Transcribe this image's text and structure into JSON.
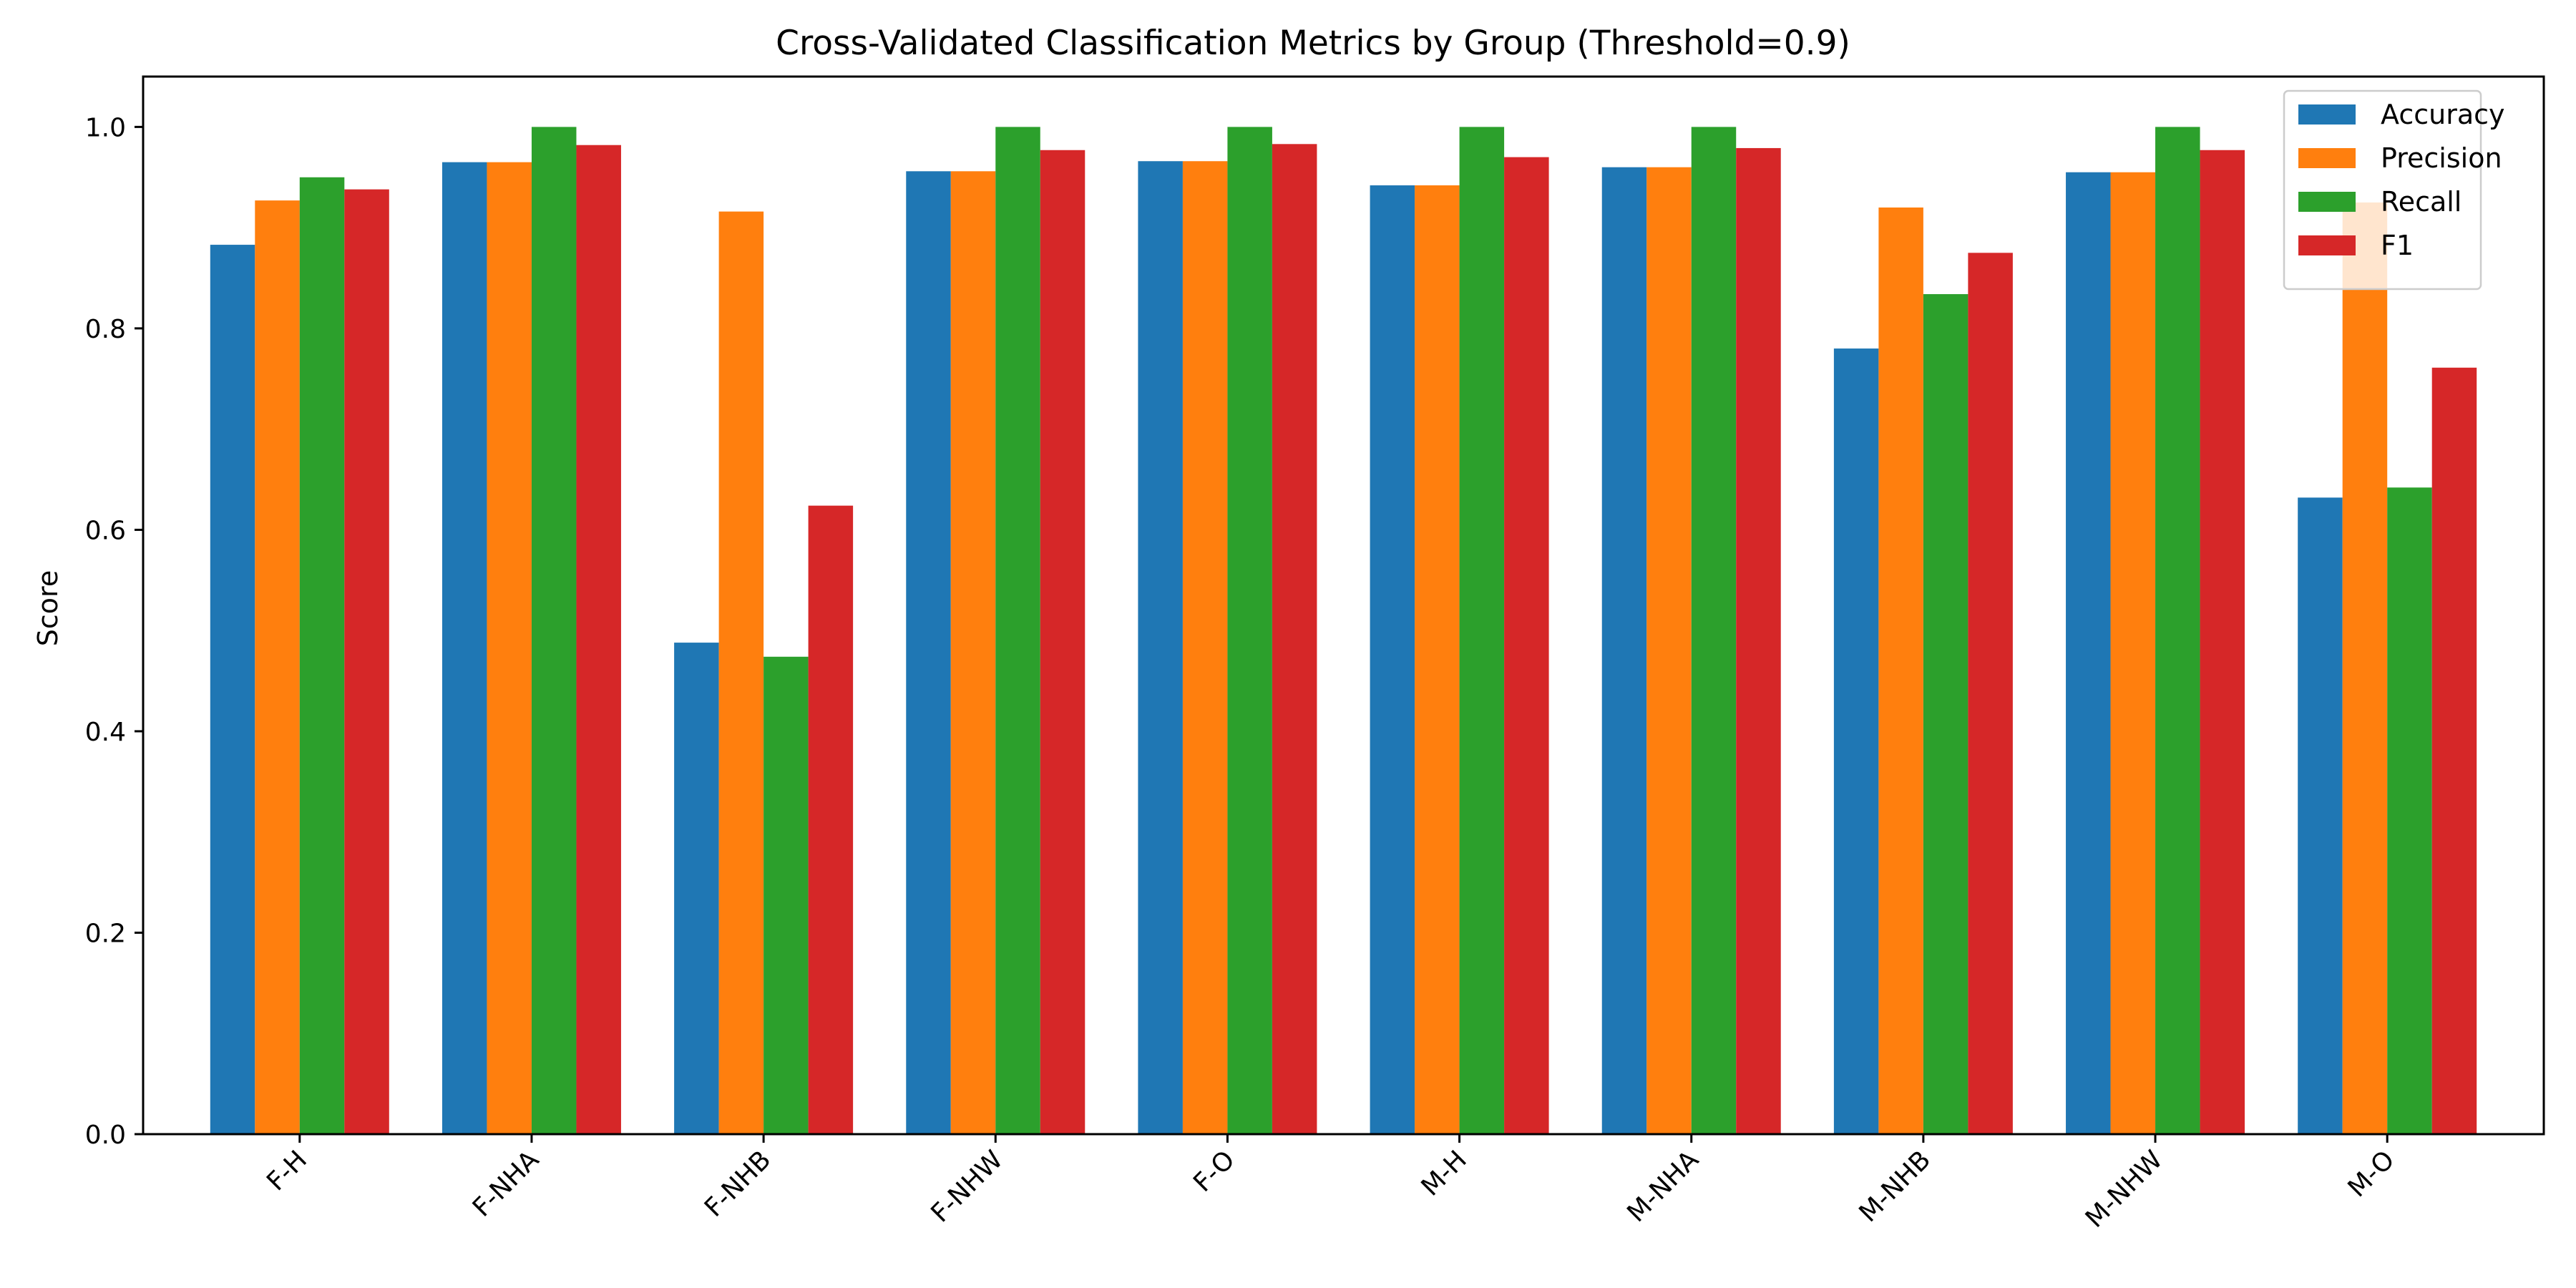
{
  "chart_data": {
    "type": "bar",
    "title": "Cross-Validated Classification Metrics by Group (Threshold=0.9)",
    "xlabel": "",
    "ylabel": "Score",
    "ylim": [
      0.0,
      1.05
    ],
    "yticks": [
      "0.0",
      "0.2",
      "0.4",
      "0.6",
      "0.8",
      "1.0"
    ],
    "grid": false,
    "legend_position": "top-right",
    "categories": [
      "F-H",
      "F-NHA",
      "F-NHB",
      "F-NHW",
      "F-O",
      "M-H",
      "M-NHA",
      "M-NHB",
      "M-NHW",
      "M-O"
    ],
    "series": [
      {
        "name": "Accuracy",
        "color": "#1f77b4",
        "values": [
          0.883,
          0.965,
          0.488,
          0.956,
          0.966,
          0.942,
          0.96,
          0.78,
          0.955,
          0.632
        ]
      },
      {
        "name": "Precision",
        "color": "#ff7f0e",
        "values": [
          0.927,
          0.965,
          0.916,
          0.956,
          0.966,
          0.942,
          0.96,
          0.92,
          0.955,
          0.925
        ]
      },
      {
        "name": "Recall",
        "color": "#2ca02c",
        "values": [
          0.95,
          1.0,
          0.474,
          1.0,
          1.0,
          1.0,
          1.0,
          0.834,
          1.0,
          0.642
        ]
      },
      {
        "name": "F1",
        "color": "#d62728",
        "values": [
          0.938,
          0.982,
          0.624,
          0.977,
          0.983,
          0.97,
          0.979,
          0.875,
          0.977,
          0.761
        ]
      }
    ]
  }
}
